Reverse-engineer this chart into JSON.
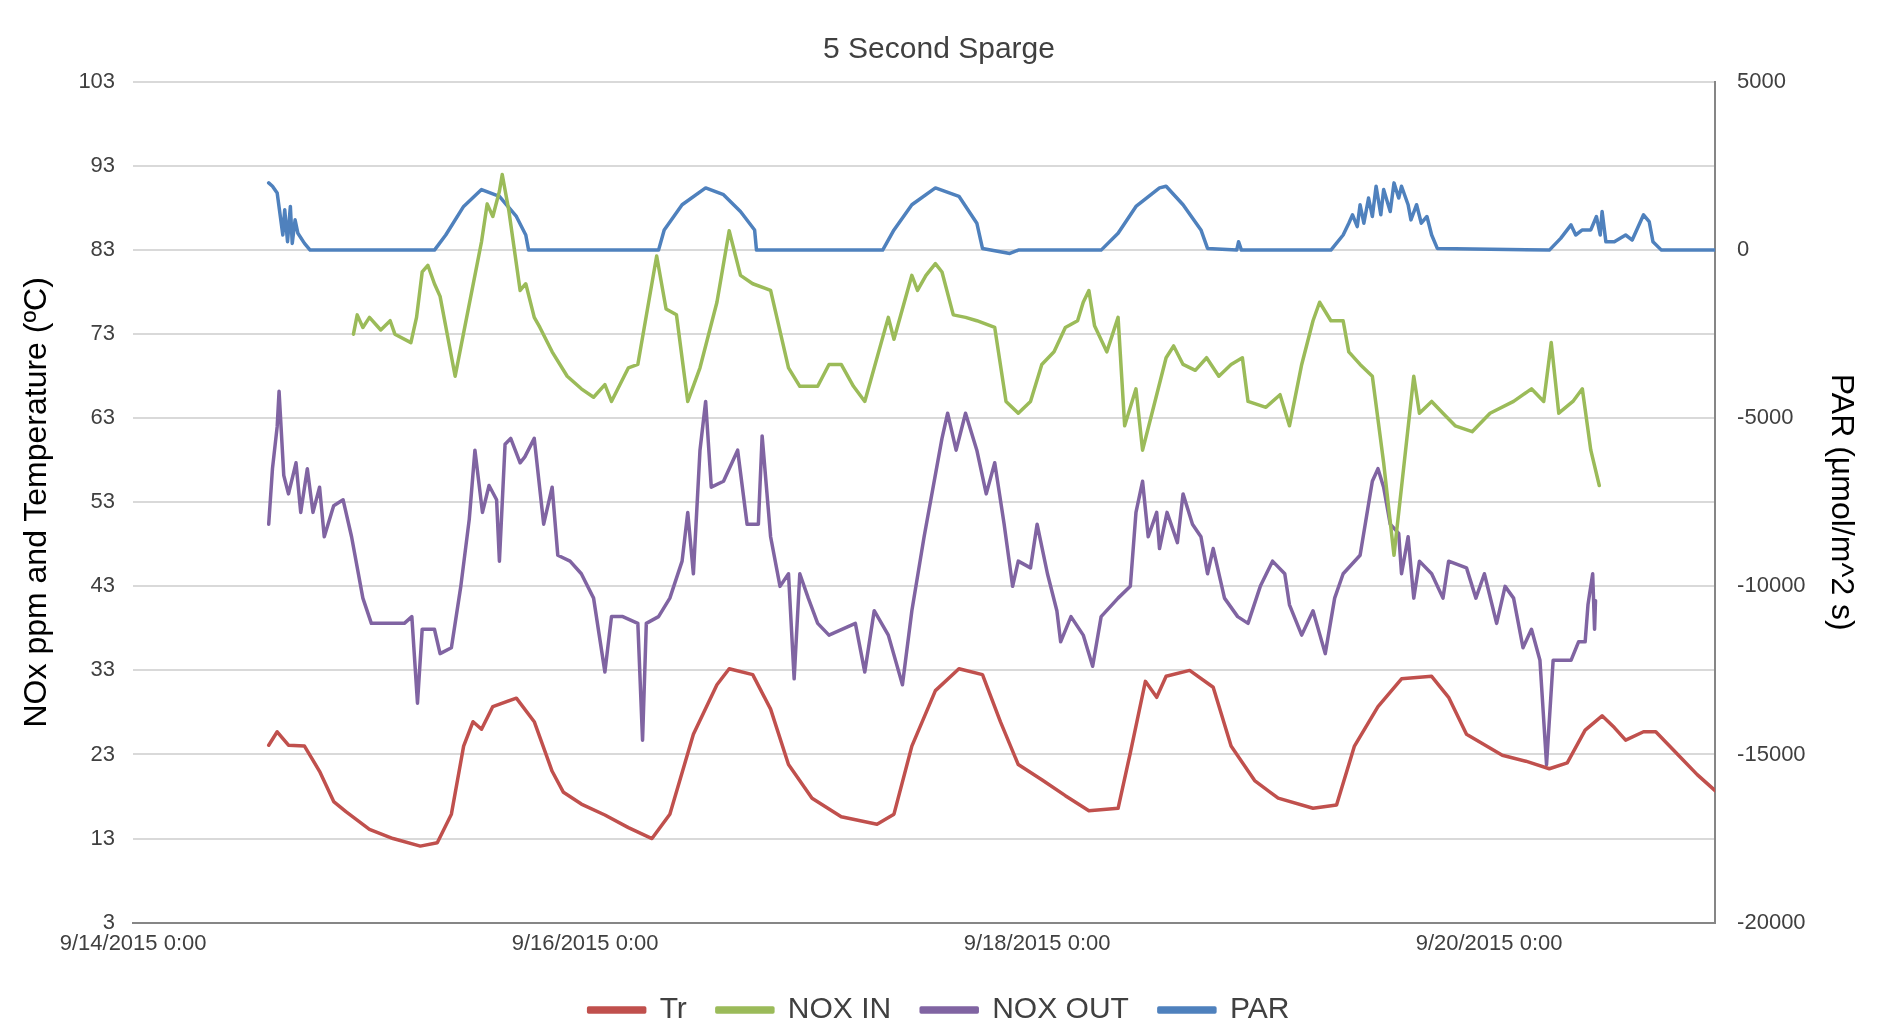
{
  "chart_data": {
    "type": "line",
    "title": "5 Second Sparge",
    "ylabel": "NOx ppm and Temperature (ºC)",
    "y2label": "PAR (µmol/m^2 s)",
    "xlim": [
      "2015-09-14T00:00",
      "2015-09-21T00:00"
    ],
    "xticks": [
      {
        "value": "2015-09-14T00:00",
        "label": "9/14/2015 0:00"
      },
      {
        "value": "2015-09-16T00:00",
        "label": "9/16/2015 0:00"
      },
      {
        "value": "2015-09-18T00:00",
        "label": "9/18/2015 0:00"
      },
      {
        "value": "2015-09-20T00:00",
        "label": "9/20/2015 0:00"
      }
    ],
    "ylim": [
      3,
      103
    ],
    "yticks": [
      3,
      13,
      23,
      33,
      43,
      53,
      63,
      73,
      83,
      93,
      103
    ],
    "y2lim": [
      -20000,
      5000
    ],
    "y2ticks": [
      -20000,
      -15000,
      -10000,
      -5000,
      0,
      5000
    ],
    "grid": "y",
    "legend": "bottom",
    "marker": "none",
    "line_style": "solid",
    "series": [
      {
        "name": "Tr",
        "color": "#c0504d",
        "x": [
          "2015-09-14T14:24",
          "2015-09-14T15:18",
          "2015-09-14T16:30",
          "2015-09-14T18:12",
          "2015-09-14T19:48",
          "2015-09-14T21:18",
          "2015-09-14T22:36",
          "2015-09-15T01:06",
          "2015-09-15T03:36",
          "2015-09-15T06:30",
          "2015-09-15T08:18",
          "2015-09-15T09:48",
          "2015-09-15T11:06",
          "2015-09-15T12:06",
          "2015-09-15T13:00",
          "2015-09-15T14:12",
          "2015-09-15T16:42",
          "2015-09-15T18:36",
          "2015-09-15T20:30",
          "2015-09-15T21:42",
          "2015-09-15T23:36",
          "2015-09-16T02:06",
          "2015-09-16T04:36",
          "2015-09-16T07:06",
          "2015-09-16T09:00",
          "2015-09-16T11:30",
          "2015-09-16T14:00",
          "2015-09-16T15:18",
          "2015-09-16T17:48",
          "2015-09-16T19:42",
          "2015-09-16T21:36",
          "2015-09-17T00:06",
          "2015-09-17T03:12",
          "2015-09-17T07:00",
          "2015-09-17T08:48",
          "2015-09-17T10:42",
          "2015-09-17T13:12",
          "2015-09-17T15:42",
          "2015-09-17T18:12",
          "2015-09-17T20:06",
          "2015-09-17T22:00",
          "2015-09-18T00:30",
          "2015-09-18T03:00",
          "2015-09-18T05:30",
          "2015-09-18T08:36",
          "2015-09-18T09:54",
          "2015-09-18T11:30",
          "2015-09-18T12:42",
          "2015-09-18T13:42",
          "2015-09-18T16:12",
          "2015-09-18T18:42",
          "2015-09-18T20:36",
          "2015-09-18T23:06",
          "2015-09-19T01:36",
          "2015-09-19T05:18",
          "2015-09-19T07:48",
          "2015-09-19T09:42",
          "2015-09-19T12:12",
          "2015-09-19T14:42",
          "2015-09-19T17:54",
          "2015-09-19T19:42",
          "2015-09-19T21:36",
          "2015-09-20T01:24",
          "2015-09-20T03:54",
          "2015-09-20T06:24",
          "2015-09-20T08:18",
          "2015-09-20T10:12",
          "2015-09-20T12:00",
          "2015-09-20T13:18",
          "2015-09-20T14:30",
          "2015-09-20T16:24",
          "2015-09-20T17:42",
          "2015-09-20T19:36",
          "2015-09-20T22:06",
          "2015-09-21T00:00"
        ],
        "values": [
          24.1,
          25.7,
          24.1,
          24,
          21,
          17.4,
          16.2,
          14.1,
          13,
          12.1,
          12.5,
          15.9,
          24,
          26.9,
          26,
          28.7,
          29.7,
          26.9,
          21,
          18.5,
          17.1,
          15.8,
          14.3,
          13,
          15.9,
          25.4,
          31.3,
          33.2,
          32.5,
          28.4,
          21.8,
          17.8,
          15.6,
          14.7,
          15.9,
          24,
          30.6,
          33.2,
          32.5,
          26.9,
          21.8,
          20,
          18.1,
          16.3,
          16.6,
          23.2,
          31.7,
          29.8,
          32.3,
          33,
          31,
          24,
          19.9,
          17.8,
          16.6,
          17,
          24,
          28.7,
          32,
          32.3,
          29.8,
          25.4,
          22.9,
          22.2,
          21.3,
          22,
          25.9,
          27.6,
          26.2,
          24.7,
          25.7,
          25.7,
          23.5,
          20.6,
          18.7
        ]
      },
      {
        "name": "NOX IN",
        "color": "#9bbb59",
        "x": [
          "2015-09-14T23:24",
          "2015-09-14T23:48",
          "2015-09-15T00:24",
          "2015-09-15T01:06",
          "2015-09-15T02:18",
          "2015-09-15T03:18",
          "2015-09-15T03:48",
          "2015-09-15T05:30",
          "2015-09-15T06:06",
          "2015-09-15T06:42",
          "2015-09-15T07:18",
          "2015-09-15T08:00",
          "2015-09-15T08:36",
          "2015-09-15T10:12",
          "2015-09-15T13:00",
          "2015-09-15T13:36",
          "2015-09-15T14:12",
          "2015-09-15T14:54",
          "2015-09-15T15:12",
          "2015-09-15T15:54",
          "2015-09-15T17:06",
          "2015-09-15T17:42",
          "2015-09-15T18:36",
          "2015-09-15T19:12",
          "2015-09-15T20:30",
          "2015-09-15T22:06",
          "2015-09-15T23:36",
          "2015-09-16T00:54",
          "2015-09-16T02:06",
          "2015-09-16T02:48",
          "2015-09-16T04:36",
          "2015-09-16T05:36",
          "2015-09-16T07:36",
          "2015-09-16T08:36",
          "2015-09-16T09:42",
          "2015-09-16T10:54",
          "2015-09-16T12:12",
          "2015-09-16T14:00",
          "2015-09-16T15:18",
          "2015-09-16T16:30",
          "2015-09-16T17:48",
          "2015-09-16T19:42",
          "2015-09-16T21:36",
          "2015-09-16T22:48",
          "2015-09-17T00:42",
          "2015-09-17T01:54",
          "2015-09-17T03:12",
          "2015-09-17T04:30",
          "2015-09-17T05:42",
          "2015-09-17T08:12",
          "2015-09-17T08:48",
          "2015-09-17T10:42",
          "2015-09-17T11:18",
          "2015-09-17T12:12",
          "2015-09-17T13:12",
          "2015-09-17T13:54",
          "2015-09-17T15:06",
          "2015-09-17T16:24",
          "2015-09-17T17:36",
          "2015-09-17T19:30",
          "2015-09-17T20:42",
          "2015-09-17T22:00",
          "2015-09-17T23:18",
          "2015-09-18T00:30",
          "2015-09-18T01:48",
          "2015-09-18T03:00",
          "2015-09-18T04:18",
          "2015-09-18T04:54",
          "2015-09-18T05:30",
          "2015-09-18T06:06",
          "2015-09-18T07:24",
          "2015-09-18T08:36",
          "2015-09-18T09:18",
          "2015-09-18T10:30",
          "2015-09-18T11:12",
          "2015-09-18T12:12",
          "2015-09-18T13:42",
          "2015-09-18T14:30",
          "2015-09-18T15:30",
          "2015-09-18T16:48",
          "2015-09-18T18:00",
          "2015-09-18T19:18",
          "2015-09-18T20:36",
          "2015-09-18T21:48",
          "2015-09-18T22:24",
          "2015-09-19T00:18",
          "2015-09-19T01:48",
          "2015-09-19T02:48",
          "2015-09-19T04:06",
          "2015-09-19T05:18",
          "2015-09-19T06:00",
          "2015-09-19T07:12",
          "2015-09-19T08:30",
          "2015-09-19T09:06",
          "2015-09-19T10:18",
          "2015-09-19T11:36",
          "2015-09-19T12:48",
          "2015-09-19T13:54",
          "2015-09-19T14:42",
          "2015-09-19T16:00",
          "2015-09-19T16:36",
          "2015-09-19T17:54",
          "2015-09-19T19:06",
          "2015-09-19T20:24",
          "2015-09-19T22:12",
          "2015-09-20T00:06",
          "2015-09-20T02:36",
          "2015-09-20T04:30",
          "2015-09-20T05:48",
          "2015-09-20T06:36",
          "2015-09-20T07:24",
          "2015-09-20T08:54",
          "2015-09-20T09:54",
          "2015-09-20T10:48",
          "2015-09-20T11:42"
        ],
        "values": [
          73,
          75.3,
          73.8,
          75,
          73.5,
          74.6,
          73,
          72,
          75,
          80.4,
          81.2,
          79,
          77.5,
          68,
          84,
          88.5,
          87,
          90,
          92,
          87.7,
          78.2,
          79,
          75,
          73.8,
          70.9,
          68,
          66.5,
          65.5,
          67,
          65,
          69,
          69.4,
          82.3,
          76,
          75.3,
          65,
          69,
          76.8,
          85.3,
          80,
          79,
          78.2,
          69,
          66.8,
          66.8,
          69.4,
          69.4,
          66.8,
          65,
          75,
          72.4,
          80,
          78.2,
          80,
          81.4,
          80.4,
          75.3,
          75,
          74.6,
          73.8,
          65,
          63.6,
          65,
          69.4,
          70.9,
          73.8,
          74.6,
          76.8,
          78.2,
          74,
          70.9,
          75,
          62.1,
          66.5,
          59.2,
          63.6,
          70.2,
          71.6,
          69.4,
          68.7,
          70.2,
          68,
          69.4,
          70.2,
          65,
          64.3,
          65.8,
          62.1,
          69.4,
          74.6,
          76.8,
          74.6,
          74.6,
          70.9,
          69.4,
          68,
          57.7,
          46.7,
          54.8,
          68,
          63.6,
          65,
          63.6,
          62.1,
          61.4,
          63.6,
          65,
          66.5,
          65,
          72,
          63.6,
          65,
          66.5,
          59.2,
          55
        ]
      },
      {
        "name": "NOX OUT",
        "color": "#8064a2",
        "x": [
          "2015-09-14T14:24",
          "2015-09-14T14:48",
          "2015-09-14T15:18",
          "2015-09-14T15:30",
          "2015-09-14T16:00",
          "2015-09-14T16:30",
          "2015-09-14T17:18",
          "2015-09-14T17:48",
          "2015-09-14T18:30",
          "2015-09-14T19:06",
          "2015-09-14T19:48",
          "2015-09-14T20:18",
          "2015-09-14T21:18",
          "2015-09-14T22:18",
          "2015-09-14T23:12",
          "2015-09-15T00:24",
          "2015-09-15T01:18",
          "2015-09-15T03:18",
          "2015-09-15T04:48",
          "2015-09-15T05:36",
          "2015-09-15T06:12",
          "2015-09-15T06:42",
          "2015-09-15T08:00",
          "2015-09-15T08:36",
          "2015-09-15T09:48",
          "2015-09-15T10:48",
          "2015-09-15T11:42",
          "2015-09-15T12:18",
          "2015-09-15T13:06",
          "2015-09-15T13:48",
          "2015-09-15T14:36",
          "2015-09-15T14:54",
          "2015-09-15T15:30",
          "2015-09-15T16:06",
          "2015-09-15T17:06",
          "2015-09-15T17:36",
          "2015-09-15T18:36",
          "2015-09-15T19:36",
          "2015-09-15T20:30",
          "2015-09-15T21:06",
          "2015-09-15T22:24",
          "2015-09-15T23:36",
          "2015-09-16T00:54",
          "2015-09-16T01:30",
          "2015-09-16T02:06",
          "2015-09-16T02:48",
          "2015-09-16T04:00",
          "2015-09-16T05:36",
          "2015-09-16T06:06",
          "2015-09-16T06:30",
          "2015-09-16T07:48",
          "2015-09-16T09:00",
          "2015-09-16T10:18",
          "2015-09-16T10:54",
          "2015-09-16T11:30",
          "2015-09-16T12:12",
          "2015-09-16T12:48",
          "2015-09-16T13:24",
          "2015-09-16T14:42",
          "2015-09-16T16:12",
          "2015-09-16T17:12",
          "2015-09-16T18:24",
          "2015-09-16T18:48",
          "2015-09-16T19:42",
          "2015-09-16T20:42",
          "2015-09-16T21:36",
          "2015-09-16T22:12",
          "2015-09-16T22:48",
          "2015-09-16T23:42",
          "2015-09-17T00:42",
          "2015-09-17T01:54",
          "2015-09-17T04:42",
          "2015-09-17T05:42",
          "2015-09-17T06:42",
          "2015-09-17T08:12",
          "2015-09-17T09:42",
          "2015-09-17T10:42",
          "2015-09-17T12:00",
          "2015-09-17T13:54",
          "2015-09-17T14:30",
          "2015-09-17T15:24",
          "2015-09-17T16:24",
          "2015-09-17T17:36",
          "2015-09-17T18:36",
          "2015-09-17T19:30",
          "2015-09-17T20:30",
          "2015-09-17T21:24",
          "2015-09-17T22:00",
          "2015-09-17T23:18",
          "2015-09-18T00:00",
          "2015-09-18T01:06",
          "2015-09-18T02:06",
          "2015-09-18T02:30",
          "2015-09-18T03:36",
          "2015-09-18T04:54",
          "2015-09-18T05:54",
          "2015-09-18T06:48",
          "2015-09-18T08:36",
          "2015-09-18T09:54",
          "2015-09-18T10:30",
          "2015-09-18T11:12",
          "2015-09-18T11:48",
          "2015-09-18T12:42",
          "2015-09-18T13:00",
          "2015-09-18T13:48",
          "2015-09-18T14:54",
          "2015-09-18T15:30",
          "2015-09-18T16:30",
          "2015-09-18T17:24",
          "2015-09-18T18:06",
          "2015-09-18T18:42",
          "2015-09-18T19:54",
          "2015-09-18T21:18",
          "2015-09-18T22:24",
          "2015-09-18T23:42",
          "2015-09-19T01:00",
          "2015-09-19T02:18",
          "2015-09-19T02:48",
          "2015-09-19T04:06",
          "2015-09-19T05:18",
          "2015-09-19T06:36",
          "2015-09-19T07:36",
          "2015-09-19T08:30",
          "2015-09-19T10:18",
          "2015-09-19T11:36",
          "2015-09-19T12:12",
          "2015-09-19T12:48",
          "2015-09-19T13:30",
          "2015-09-19T14:24",
          "2015-09-19T14:42",
          "2015-09-19T15:24",
          "2015-09-19T16:00",
          "2015-09-19T16:36",
          "2015-09-19T17:54",
          "2015-09-19T19:06",
          "2015-09-19T19:42",
          "2015-09-19T21:36",
          "2015-09-19T22:36",
          "2015-09-19T23:30",
          "2015-09-20T00:48",
          "2015-09-20T01:42",
          "2015-09-20T02:36",
          "2015-09-20T03:36",
          "2015-09-20T04:30",
          "2015-09-20T05:24",
          "2015-09-20T06:06",
          "2015-09-20T06:48",
          "2015-09-20T08:42",
          "2015-09-20T09:30",
          "2015-09-20T10:12",
          "2015-09-20T10:30",
          "2015-09-20T11:00",
          "2015-09-20T11:12",
          "2015-09-20T11:18"
        ],
        "values": [
          50.4,
          57,
          62,
          66.2,
          56.2,
          54,
          57.7,
          51.8,
          57,
          51.8,
          54.8,
          48.9,
          52.6,
          53.3,
          48.9,
          41.6,
          38.6,
          38.6,
          38.6,
          39.4,
          29.1,
          37.9,
          37.9,
          35,
          35.7,
          43,
          51,
          59.2,
          51.8,
          55,
          53.3,
          46,
          59.9,
          60.6,
          57.7,
          58.4,
          60.6,
          50.4,
          54.8,
          46.7,
          46,
          44.5,
          41.6,
          37.2,
          32.8,
          39.4,
          39.4,
          38.6,
          24.7,
          38.6,
          39.4,
          41.6,
          46,
          51.8,
          44.5,
          59.2,
          65,
          54.8,
          55.5,
          59.2,
          50.4,
          50.4,
          60.9,
          48.9,
          43,
          44.5,
          32,
          44.5,
          41.6,
          38.6,
          37.2,
          38.6,
          32.8,
          40.1,
          37.2,
          31.3,
          40.1,
          48.9,
          60.6,
          63.6,
          59.2,
          63.6,
          59.2,
          54,
          57.7,
          50.4,
          43,
          46,
          45.2,
          50.4,
          44.5,
          40.1,
          36.4,
          39.4,
          37.2,
          33.5,
          39.4,
          41.6,
          43,
          51.8,
          55.5,
          48.9,
          51.8,
          47.5,
          51.8,
          48.2,
          54,
          50.4,
          48.9,
          44.5,
          47.5,
          41.6,
          39.4,
          38.6,
          43,
          46,
          44.5,
          40.8,
          37.2,
          40.1,
          35,
          41.6,
          44.5,
          46.7,
          55.5,
          57,
          54.8,
          50.4,
          49.3,
          44.5,
          48.9,
          41.6,
          46,
          44.5,
          41.6,
          46,
          45.2,
          41.6,
          44.5,
          38.6,
          43,
          41.6,
          35.7,
          37.9,
          34.2,
          21.8,
          34.2,
          34.2,
          36.4,
          36.4,
          40.8,
          44.5,
          37.9,
          41.3
        ]
      },
      {
        "name": "PAR",
        "color": "#4f81bd",
        "axis": "y2",
        "x": [
          "2015-09-14T14:24",
          "2015-09-14T14:48",
          "2015-09-14T15:18",
          "2015-09-14T15:54",
          "2015-09-14T16:06",
          "2015-09-14T16:24",
          "2015-09-14T16:42",
          "2015-09-14T16:54",
          "2015-09-14T17:12",
          "2015-09-14T17:30",
          "2015-09-14T18:12",
          "2015-09-14T18:48",
          "2015-09-15T08:00",
          "2015-09-15T09:12",
          "2015-09-15T11:06",
          "2015-09-15T13:00",
          "2015-09-15T14:54",
          "2015-09-15T16:42",
          "2015-09-15T17:42",
          "2015-09-15T18:00",
          "2015-09-16T07:48",
          "2015-09-16T08:24",
          "2015-09-16T10:18",
          "2015-09-16T12:48",
          "2015-09-16T14:42",
          "2015-09-16T16:30",
          "2015-09-16T18:00",
          "2015-09-16T18:12",
          "2015-09-17T07:36",
          "2015-09-17T08:48",
          "2015-09-17T10:42",
          "2015-09-17T13:12",
          "2015-09-17T15:42",
          "2015-09-17T17:36",
          "2015-09-17T18:12",
          "2015-09-17T21:06",
          "2015-09-17T22:00",
          "2015-09-18T06:48",
          "2015-09-18T08:36",
          "2015-09-18T10:30",
          "2015-09-18T13:00",
          "2015-09-18T13:42",
          "2015-09-18T15:30",
          "2015-09-18T17:24",
          "2015-09-18T18:06",
          "2015-09-18T21:12",
          "2015-09-18T21:24",
          "2015-09-18T21:42",
          "2015-09-19T07:12",
          "2015-09-19T08:30",
          "2015-09-19T09:06",
          "2015-09-19T09:30",
          "2015-09-19T10:00",
          "2015-09-19T10:18",
          "2015-09-19T10:42",
          "2015-09-19T11:12",
          "2015-09-19T11:36",
          "2015-09-19T12:00",
          "2015-09-19T12:30",
          "2015-09-19T12:48",
          "2015-09-19T13:30",
          "2015-09-19T13:54",
          "2015-09-19T14:24",
          "2015-09-19T14:42",
          "2015-09-19T15:24",
          "2015-09-19T15:42",
          "2015-09-19T16:18",
          "2015-09-19T16:48",
          "2015-09-19T17:24",
          "2015-09-19T17:54",
          "2015-09-19T18:30",
          "2015-09-20T06:24",
          "2015-09-20T07:36",
          "2015-09-20T08:42",
          "2015-09-20T09:12",
          "2015-09-20T09:54",
          "2015-09-20T10:48",
          "2015-09-20T11:24",
          "2015-09-20T11:48",
          "2015-09-20T12:00",
          "2015-09-20T12:24",
          "2015-09-20T13:18",
          "2015-09-20T14:30",
          "2015-09-20T15:12",
          "2015-09-20T16:24",
          "2015-09-20T17:00",
          "2015-09-20T17:24",
          "2015-09-20T18:18",
          "2015-09-21T00:00"
        ],
        "values": [
          2000,
          1900,
          1700,
          450,
          1200,
          250,
          1300,
          200,
          900,
          500,
          200,
          0,
          0,
          450,
          1300,
          1800,
          1600,
          1000,
          450,
          0,
          0,
          600,
          1350,
          1850,
          1650,
          1150,
          600,
          0,
          0,
          600,
          1350,
          1850,
          1600,
          800,
          50,
          -100,
          0,
          0,
          500,
          1300,
          1850,
          1900,
          1350,
          600,
          50,
          0,
          250,
          0,
          0,
          450,
          800,
          1050,
          700,
          1350,
          800,
          1550,
          1000,
          1900,
          1050,
          1800,
          1150,
          2000,
          1550,
          1900,
          1350,
          900,
          1350,
          800,
          1000,
          450,
          50,
          0,
          350,
          750,
          450,
          600,
          600,
          1000,
          450,
          1150,
          250,
          250,
          450,
          300,
          1050,
          850,
          250,
          0,
          0
        ]
      }
    ]
  }
}
